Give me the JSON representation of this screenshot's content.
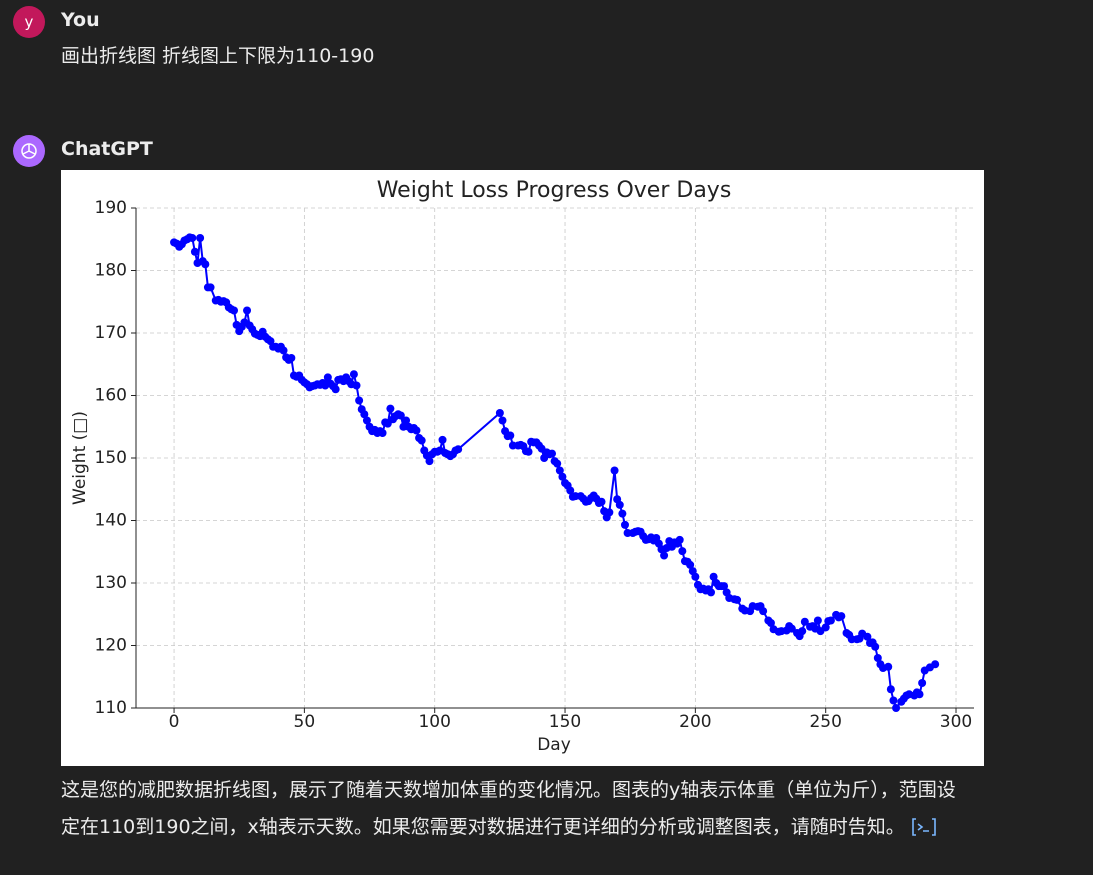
{
  "user": {
    "avatar": "y",
    "name": "You",
    "message": "画出折线图 折线图上下限为110-190"
  },
  "assistant": {
    "name": "ChatGPT",
    "message": "这是您的减肥数据折线图，展示了随着天数增加体重的变化情况。图表的y轴表示体重（单位为斤），范围设定在110到190之间，x轴表示天数。如果您需要对数据进行更详细的分析或调整图表，请随时告知。"
  },
  "chart_data": {
    "type": "line",
    "title": "Weight Loss Progress Over Days",
    "x_label": "Day",
    "y_label": "Weight (□)",
    "color": "#0000ff",
    "markers": true,
    "grid": true,
    "xlim": [
      -14.6,
      306.9
    ],
    "ylim": [
      110,
      190
    ],
    "xticks": [
      0,
      50,
      100,
      150,
      200,
      250,
      300
    ],
    "yticks": [
      110,
      120,
      130,
      140,
      150,
      160,
      170,
      180,
      190
    ],
    "x": [
      0,
      1,
      2,
      3,
      4,
      5,
      6,
      7,
      8,
      9,
      10,
      11,
      12,
      13,
      14,
      16,
      17,
      18,
      19,
      20,
      21,
      22,
      23,
      24,
      25,
      26,
      27,
      28,
      29,
      30,
      31,
      32,
      33,
      34,
      35,
      36,
      37,
      38,
      39,
      40,
      41,
      42,
      43,
      44,
      45,
      46,
      47,
      48,
      49,
      50,
      51,
      52,
      53,
      54,
      55,
      56,
      57,
      58,
      59,
      60,
      61,
      62,
      63,
      64,
      65,
      66,
      67,
      68,
      69,
      70,
      71,
      72,
      73,
      74,
      75,
      76,
      77,
      78,
      79,
      80,
      81,
      82,
      83,
      84,
      85,
      86,
      87,
      88,
      89,
      90,
      91,
      92,
      93,
      94,
      95,
      96,
      97,
      98,
      99,
      100,
      101,
      102,
      103,
      104,
      105,
      106,
      107,
      108,
      109,
      125,
      126,
      127,
      128,
      129,
      130,
      132,
      133,
      134,
      135,
      136,
      137,
      138,
      139,
      140,
      141,
      142,
      143,
      144,
      145,
      146,
      147,
      148,
      149,
      150,
      151,
      152,
      153,
      154,
      156,
      157,
      158,
      159,
      160,
      161,
      162,
      163,
      164,
      165,
      166,
      167,
      169,
      170,
      171,
      172,
      173,
      174,
      176,
      177,
      178,
      179,
      180,
      181,
      182,
      183,
      184,
      185,
      186,
      187,
      188,
      189,
      190,
      191,
      192,
      193,
      194,
      195,
      196,
      197,
      198,
      199,
      200,
      201,
      202,
      203,
      204,
      205,
      206,
      207,
      208,
      209,
      210,
      211,
      212,
      213,
      215,
      216,
      218,
      219,
      221,
      222,
      224,
      225,
      226,
      228,
      229,
      230,
      232,
      233,
      235,
      236,
      237,
      239,
      240,
      241,
      242,
      244,
      245,
      246,
      247,
      248,
      250,
      251,
      252,
      254,
      255,
      256,
      258,
      259,
      260,
      262,
      263,
      264,
      266,
      267,
      268,
      269,
      270,
      271,
      272,
      274,
      275,
      276,
      277,
      279,
      280,
      281,
      282,
      284,
      285,
      286,
      287,
      288,
      290,
      292
    ],
    "values": [
      184.5,
      184.3,
      183.8,
      184.2,
      184.8,
      185,
      185.3,
      185.2,
      183,
      181.2,
      185.2,
      181.5,
      181,
      177.3,
      177.3,
      175.2,
      175.3,
      175,
      175.1,
      174.9,
      174.1,
      173.8,
      173.6,
      171.3,
      170.3,
      171,
      171.7,
      173.6,
      171.2,
      170.6,
      169.9,
      169.7,
      169.5,
      170.2,
      169.4,
      169,
      168.7,
      167.8,
      167.8,
      167.5,
      167.8,
      167.2,
      166.1,
      165.7,
      166,
      163.2,
      163,
      163.2,
      162.5,
      162.1,
      161.8,
      161.3,
      161.5,
      161.6,
      161.8,
      161.7,
      162,
      161.6,
      162.9,
      161.9,
      161.5,
      161,
      162.5,
      162.6,
      162.3,
      162.9,
      162.3,
      161.8,
      163.4,
      161.6,
      159.2,
      157.8,
      157,
      156,
      155,
      154.3,
      154.5,
      154,
      154.3,
      154,
      155.7,
      155.5,
      157.9,
      156.2,
      156.7,
      157,
      156.8,
      155,
      156,
      155,
      154.6,
      154.8,
      154.4,
      153.2,
      152.8,
      151.2,
      150.4,
      149.5,
      150.6,
      151,
      151,
      151.2,
      152.9,
      150.8,
      150.6,
      150.3,
      150.6,
      151.2,
      151.4,
      157.2,
      156,
      154.3,
      153.5,
      153.6,
      152,
      152,
      152.1,
      151.9,
      151.1,
      151,
      152.6,
      152.5,
      152.5,
      152,
      151.5,
      150,
      150.9,
      150.6,
      150.7,
      149.5,
      149.1,
      148,
      147,
      146,
      145.6,
      144.8,
      143.8,
      143.9,
      143.9,
      143.5,
      143,
      143.1,
      143.6,
      144,
      143.5,
      142.8,
      143,
      141.5,
      140.5,
      141.3,
      148,
      143.4,
      142.5,
      141.1,
      139.3,
      138,
      138,
      138.2,
      138.3,
      138.2,
      137.5,
      136.9,
      137,
      137.3,
      136.8,
      137.2,
      136.3,
      135.4,
      134.4,
      135.6,
      136.7,
      135.8,
      136.5,
      136.3,
      136.9,
      135.1,
      133.5,
      133.4,
      132.9,
      131.9,
      131,
      129.7,
      129,
      129.1,
      128.8,
      129,
      128.5,
      131,
      130,
      129.5,
      129.5,
      129.5,
      128.5,
      127.6,
      127.4,
      127.3,
      125.9,
      125.6,
      125.5,
      126.3,
      126.2,
      126.3,
      125.5,
      124,
      123.6,
      122.6,
      122.2,
      122.3,
      122.4,
      123.1,
      122.7,
      122,
      121.5,
      122.3,
      123.8,
      123,
      123.1,
      122.7,
      124,
      122.3,
      122.9,
      123.9,
      124,
      124.9,
      124.5,
      124.7,
      122,
      121.7,
      121,
      121,
      121.1,
      121.9,
      121.4,
      120.4,
      120.5,
      119.8,
      118,
      117,
      116.4,
      116.6,
      113,
      111.2,
      110,
      111,
      111.5,
      112,
      112.2,
      112,
      112.5,
      112.2,
      114,
      116,
      116.5,
      117
    ]
  }
}
